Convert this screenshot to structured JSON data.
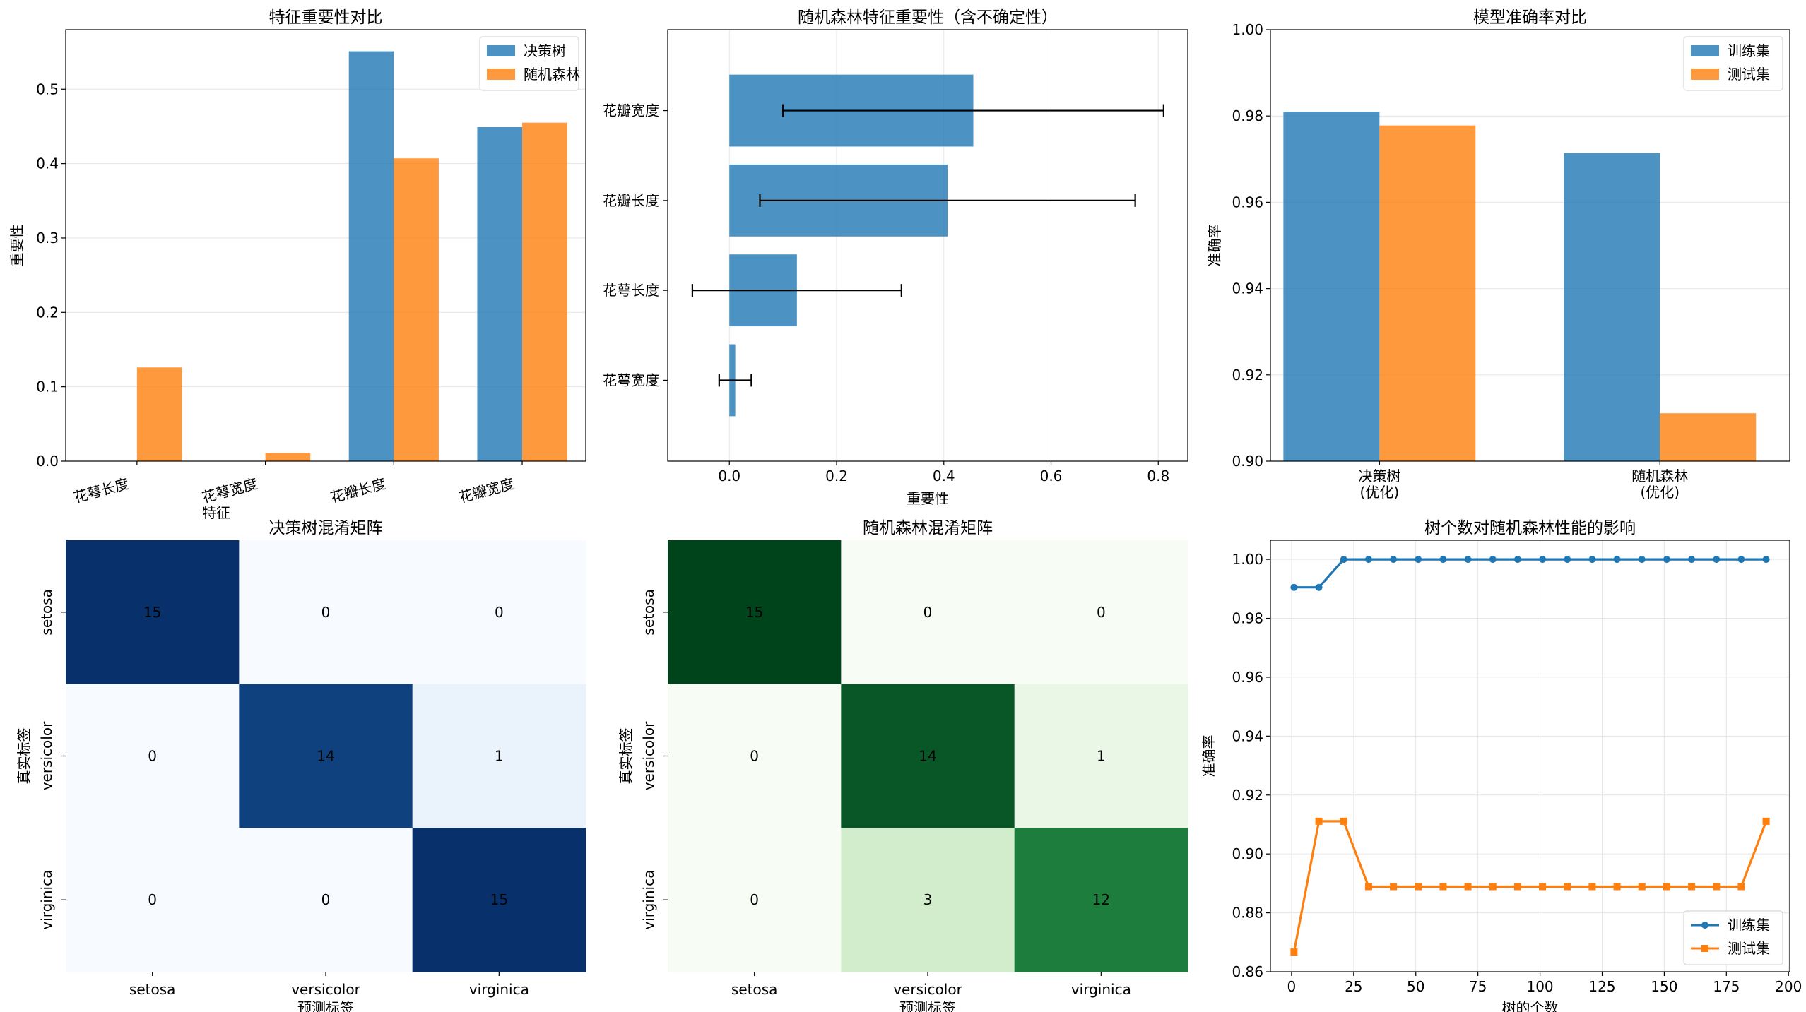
{
  "figure": {
    "width_hint": "six-panel matplotlib figure"
  },
  "chart_data": [
    {
      "id": "fi_compare",
      "type": "bar",
      "title": "特征重要性对比",
      "xlabel": "特征",
      "ylabel": "重要性",
      "categories": [
        "花萼长度",
        "花萼宽度",
        "花瓣长度",
        "花瓣宽度"
      ],
      "series": [
        {
          "name": "决策树",
          "color": "#1f77b4",
          "values": [
            0.0,
            0.0,
            0.551,
            0.449
          ]
        },
        {
          "name": "随机森林",
          "color": "#ff7f0e",
          "values": [
            0.126,
            0.011,
            0.407,
            0.455
          ]
        }
      ],
      "ylim": [
        0,
        0.58
      ],
      "yticks": [
        0.0,
        0.1,
        0.2,
        0.3,
        0.4,
        0.5
      ],
      "ytick_labels": [
        "0.0",
        "0.1",
        "0.2",
        "0.3",
        "0.4",
        "0.5"
      ],
      "legend": "top-right",
      "grid": "y"
    },
    {
      "id": "rf_importance",
      "type": "barh",
      "title": "随机森林特征重要性（含不确定性）",
      "xlabel": "重要性",
      "categories": [
        "花萼宽度",
        "花萼长度",
        "花瓣长度",
        "花瓣宽度"
      ],
      "values": [
        0.011,
        0.126,
        0.407,
        0.455
      ],
      "errors": [
        0.03,
        0.195,
        0.35,
        0.355
      ],
      "color": "#1f77b4",
      "xlim": [
        -0.115,
        0.855
      ],
      "xticks": [
        0.0,
        0.2,
        0.4,
        0.6,
        0.8
      ],
      "xtick_labels": [
        "0.0",
        "0.2",
        "0.4",
        "0.6",
        "0.8"
      ],
      "grid": "x"
    },
    {
      "id": "acc_compare",
      "type": "bar",
      "title": "模型准确率对比",
      "ylabel": "准确率",
      "categories": [
        "决策树\n(优化)",
        "随机森林\n(优化)"
      ],
      "series": [
        {
          "name": "训练集",
          "color": "#1f77b4",
          "values": [
            0.981,
            0.9714
          ]
        },
        {
          "name": "测试集",
          "color": "#ff7f0e",
          "values": [
            0.9778,
            0.9111
          ]
        }
      ],
      "ylim": [
        0.9,
        1.0
      ],
      "yticks": [
        0.9,
        0.92,
        0.94,
        0.96,
        0.98,
        1.0
      ],
      "ytick_labels": [
        "0.90",
        "0.92",
        "0.94",
        "0.96",
        "0.98",
        "1.00"
      ],
      "legend": "top-right",
      "grid": "y"
    },
    {
      "id": "cm_dt",
      "type": "heatmap",
      "title": "决策树混淆矩阵",
      "xlabel": "预测标签",
      "ylabel": "真实标签",
      "x_labels": [
        "setosa",
        "versicolor",
        "virginica"
      ],
      "y_labels": [
        "setosa",
        "versicolor",
        "virginica"
      ],
      "values": [
        [
          15,
          0,
          0
        ],
        [
          0,
          14,
          1
        ],
        [
          0,
          0,
          15
        ]
      ],
      "colormap": "Blues",
      "vmax": 15
    },
    {
      "id": "cm_rf",
      "type": "heatmap",
      "title": "随机森林混淆矩阵",
      "xlabel": "预测标签",
      "ylabel": "真实标签",
      "x_labels": [
        "setosa",
        "versicolor",
        "virginica"
      ],
      "y_labels": [
        "setosa",
        "versicolor",
        "virginica"
      ],
      "values": [
        [
          15,
          0,
          0
        ],
        [
          0,
          14,
          1
        ],
        [
          0,
          3,
          12
        ]
      ],
      "colormap": "Greens",
      "vmax": 15
    },
    {
      "id": "trees_effect",
      "type": "line",
      "title": "树个数对随机森林性能的影响",
      "xlabel": "树的个数",
      "ylabel": "准确率",
      "x": [
        1,
        11,
        21,
        31,
        41,
        51,
        61,
        71,
        81,
        91,
        101,
        111,
        121,
        131,
        141,
        151,
        161,
        171,
        181,
        191
      ],
      "series": [
        {
          "name": "训练集",
          "color": "#1f77b4",
          "marker": "circle",
          "values": [
            0.9905,
            0.9905,
            1.0,
            1.0,
            1.0,
            1.0,
            1.0,
            1.0,
            1.0,
            1.0,
            1.0,
            1.0,
            1.0,
            1.0,
            1.0,
            1.0,
            1.0,
            1.0,
            1.0,
            1.0
          ]
        },
        {
          "name": "测试集",
          "color": "#ff7f0e",
          "marker": "square",
          "values": [
            0.8667,
            0.9111,
            0.9111,
            0.8889,
            0.8889,
            0.8889,
            0.8889,
            0.8889,
            0.8889,
            0.8889,
            0.8889,
            0.8889,
            0.8889,
            0.8889,
            0.8889,
            0.8889,
            0.8889,
            0.8889,
            0.8889,
            0.9111
          ]
        }
      ],
      "xlim": [
        -8.5,
        200.5
      ],
      "ylim": [
        0.86,
        1.0065
      ],
      "xticks": [
        0,
        25,
        50,
        75,
        100,
        125,
        150,
        175,
        200
      ],
      "xtick_labels": [
        "0",
        "25",
        "50",
        "75",
        "100",
        "125",
        "150",
        "175",
        "200"
      ],
      "yticks": [
        0.86,
        0.88,
        0.9,
        0.92,
        0.94,
        0.96,
        0.98,
        1.0
      ],
      "ytick_labels": [
        "0.86",
        "0.88",
        "0.90",
        "0.92",
        "0.94",
        "0.96",
        "0.98",
        "1.00"
      ],
      "legend": "bottom-right",
      "grid": "both"
    }
  ]
}
